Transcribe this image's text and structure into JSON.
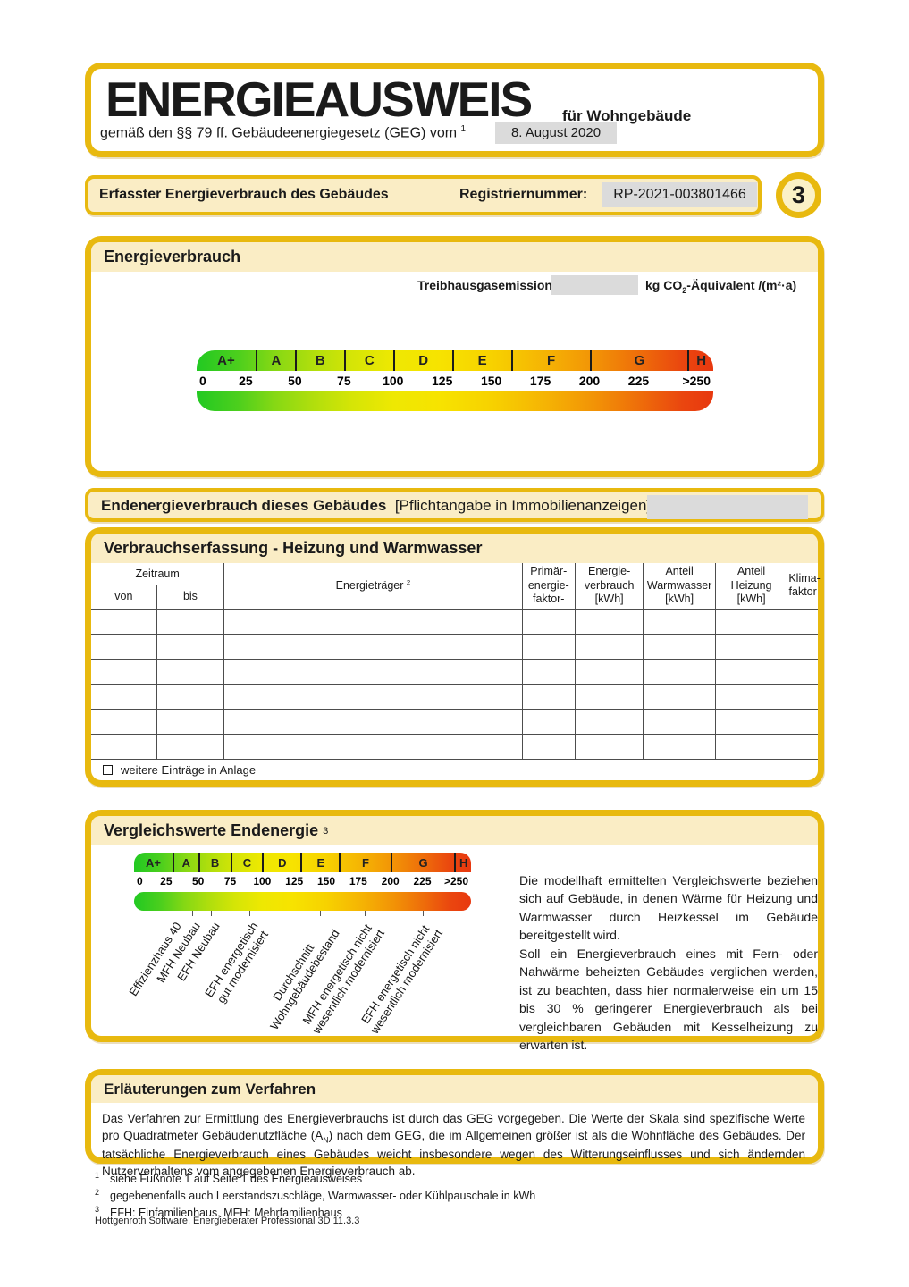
{
  "colors": {
    "gold": "#E8B90F",
    "cream": "#FAEDC5",
    "field_gray": "#DBDBDB"
  },
  "header": {
    "title": "ENERGIEAUSWEIS",
    "title_suffix": "für Wohngebäude",
    "subtitle": "gemäß den §§ 79 ff. Gebäudeenergiegesetz (GEG) vom",
    "subtitle_footnote_ref": "1",
    "date_value": "8. August 2020"
  },
  "banner": {
    "left_label": "Erfasster Energieverbrauch des Gebäudes",
    "reg_label": "Registriernummer:",
    "reg_value": "RP-2021-003801466",
    "page_number": "3"
  },
  "energieverbrauch": {
    "heading": "Energieverbrauch",
    "ghg_label": "Treibhausgasemissionen",
    "ghg_value": "",
    "ghg_unit_prefix": "kg CO",
    "ghg_unit_sub": "2",
    "ghg_unit_suffix": "-Äquivalent /(m²·a)"
  },
  "endenergie_banner": {
    "bold_text": "Endenergieverbrauch dieses Gebäudes",
    "normal_text": "[Pflichtangabe in Immobilienanzeigen]",
    "value": ""
  },
  "verbrauchserfassung": {
    "heading": "Verbrauchserfassung - Heizung und Warmwasser",
    "columns": {
      "zeitraum": "Zeitraum",
      "von": "von",
      "bis": "bis",
      "energietraeger": "Energieträger",
      "energietraeger_footnote_ref": "2",
      "primaer": "Primär-\nenergie-\nfaktor-",
      "verbrauch": "Energie-\nverbrauch\n[kWh]",
      "anteil_ww": "Anteil\nWarmwasser\n[kWh]",
      "anteil_hz": "Anteil\nHeizung\n[kWh]",
      "klima": "Klima-\nfaktor"
    },
    "empty_row_count": 6,
    "checkbox_label": "weitere Einträge in Anlage",
    "checkbox_checked": false
  },
  "vergleichswerte": {
    "heading": "Vergleichswerte Endenergie",
    "heading_footnote_ref": "3",
    "paragraph1": "Die modellhaft ermittelten Vergleichswerte beziehen sich auf Gebäude, in denen Wärme für Heizung und Warmwasser durch Heizkessel im Gebäude bereitgestellt wird.",
    "paragraph2": "Soll ein Energieverbrauch eines mit Fern- oder Nahwärme beheizten Gebäudes verglichen werden, ist zu beachten, dass hier normalerweise ein um 15 bis 30 % geringerer Energieverbrauch als bei vergleichbaren Gebäuden mit Kesselheizung zu erwarten ist."
  },
  "erlaeuterungen": {
    "heading": "Erläuterungen zum Verfahren",
    "text_part1": "Das Verfahren zur Ermittlung des Energieverbrauchs ist durch das GEG vorgegeben. Die Werte der Skala sind spezifische Werte pro Quadratmeter Gebäudenutzfläche (A",
    "text_sub": "N",
    "text_part2": ") nach dem GEG, die im Allgemeinen größer ist als die Wohnfläche des Gebäudes. Der tatsächliche Energieverbrauch eines Gebäudes weicht insbesondere wegen des Witterungseinflusses und sich ändernden Nutzerverhaltens vom angegebenen Energieverbrauch ab."
  },
  "footnotes": [
    {
      "sup": "1",
      "text": "siehe Fußnote 1 auf Seite 1 des Energieausweises"
    },
    {
      "sup": "2",
      "text": "gegebenenfalls auch Leerstandszuschläge, Warmwasser- oder Kühlpauschale in kWh"
    },
    {
      "sup": "3",
      "text": "EFH: Einfamilienhaus, MFH: Mehrfamilienhaus"
    }
  ],
  "software_credit": "Hottgenroth Software, Energieberater Professional 3D 11.3.3",
  "chart_data": [
    {
      "type": "scale",
      "name": "energy-consumption-scale",
      "axis_max": 263,
      "classes": [
        {
          "label": "A+",
          "from": 0,
          "to": 30
        },
        {
          "label": "A",
          "from": 30,
          "to": 50
        },
        {
          "label": "B",
          "from": 50,
          "to": 75
        },
        {
          "label": "C",
          "from": 75,
          "to": 100
        },
        {
          "label": "D",
          "from": 100,
          "to": 130
        },
        {
          "label": "E",
          "from": 130,
          "to": 160
        },
        {
          "label": "F",
          "from": 160,
          "to": 200
        },
        {
          "label": "G",
          "from": 200,
          "to": 250
        },
        {
          "label": "H",
          "from": 250,
          "to": 263
        }
      ],
      "ticks": [
        "0",
        "25",
        "50",
        "75",
        "100",
        "125",
        "150",
        "175",
        "200",
        "225",
        ">250"
      ],
      "tick_values": [
        0,
        25,
        50,
        75,
        100,
        125,
        150,
        175,
        200,
        225,
        250
      ],
      "gradient_stops": [
        "#22c922",
        "#f7e300",
        "#e8380f"
      ]
    },
    {
      "type": "scale",
      "name": "comparison-scale",
      "axis_max": 263,
      "classes": [
        {
          "label": "A+",
          "from": 0,
          "to": 30
        },
        {
          "label": "A",
          "from": 30,
          "to": 50
        },
        {
          "label": "B",
          "from": 50,
          "to": 75
        },
        {
          "label": "C",
          "from": 75,
          "to": 100
        },
        {
          "label": "D",
          "from": 100,
          "to": 130
        },
        {
          "label": "E",
          "from": 130,
          "to": 160
        },
        {
          "label": "F",
          "from": 160,
          "to": 200
        },
        {
          "label": "G",
          "from": 200,
          "to": 250
        },
        {
          "label": "H",
          "from": 250,
          "to": 263
        }
      ],
      "ticks": [
        "0",
        "25",
        "50",
        "75",
        "100",
        "125",
        "150",
        "175",
        "200",
        "225",
        ">250"
      ],
      "tick_values": [
        0,
        25,
        50,
        75,
        100,
        125,
        150,
        175,
        200,
        225,
        250
      ],
      "gradient_stops": [
        "#22c922",
        "#f7e300",
        "#e8380f"
      ],
      "annotations": [
        {
          "value": 30,
          "label_lines": [
            "Effizienzhaus 40"
          ]
        },
        {
          "value": 45,
          "label_lines": [
            "MFH Neubau"
          ]
        },
        {
          "value": 60,
          "label_lines": [
            "EFH Neubau"
          ]
        },
        {
          "value": 90,
          "label_lines": [
            "EFH energetisch",
            "gut modernisiert"
          ]
        },
        {
          "value": 145,
          "label_lines": [
            "Durchschnitt",
            "Wohngebäudebestand"
          ]
        },
        {
          "value": 180,
          "label_lines": [
            "MFH energetisch nicht",
            "wesentlich modernisiert"
          ]
        },
        {
          "value": 225,
          "label_lines": [
            "EFH energetisch nicht",
            "wesentlich modernisiert"
          ]
        }
      ]
    }
  ]
}
